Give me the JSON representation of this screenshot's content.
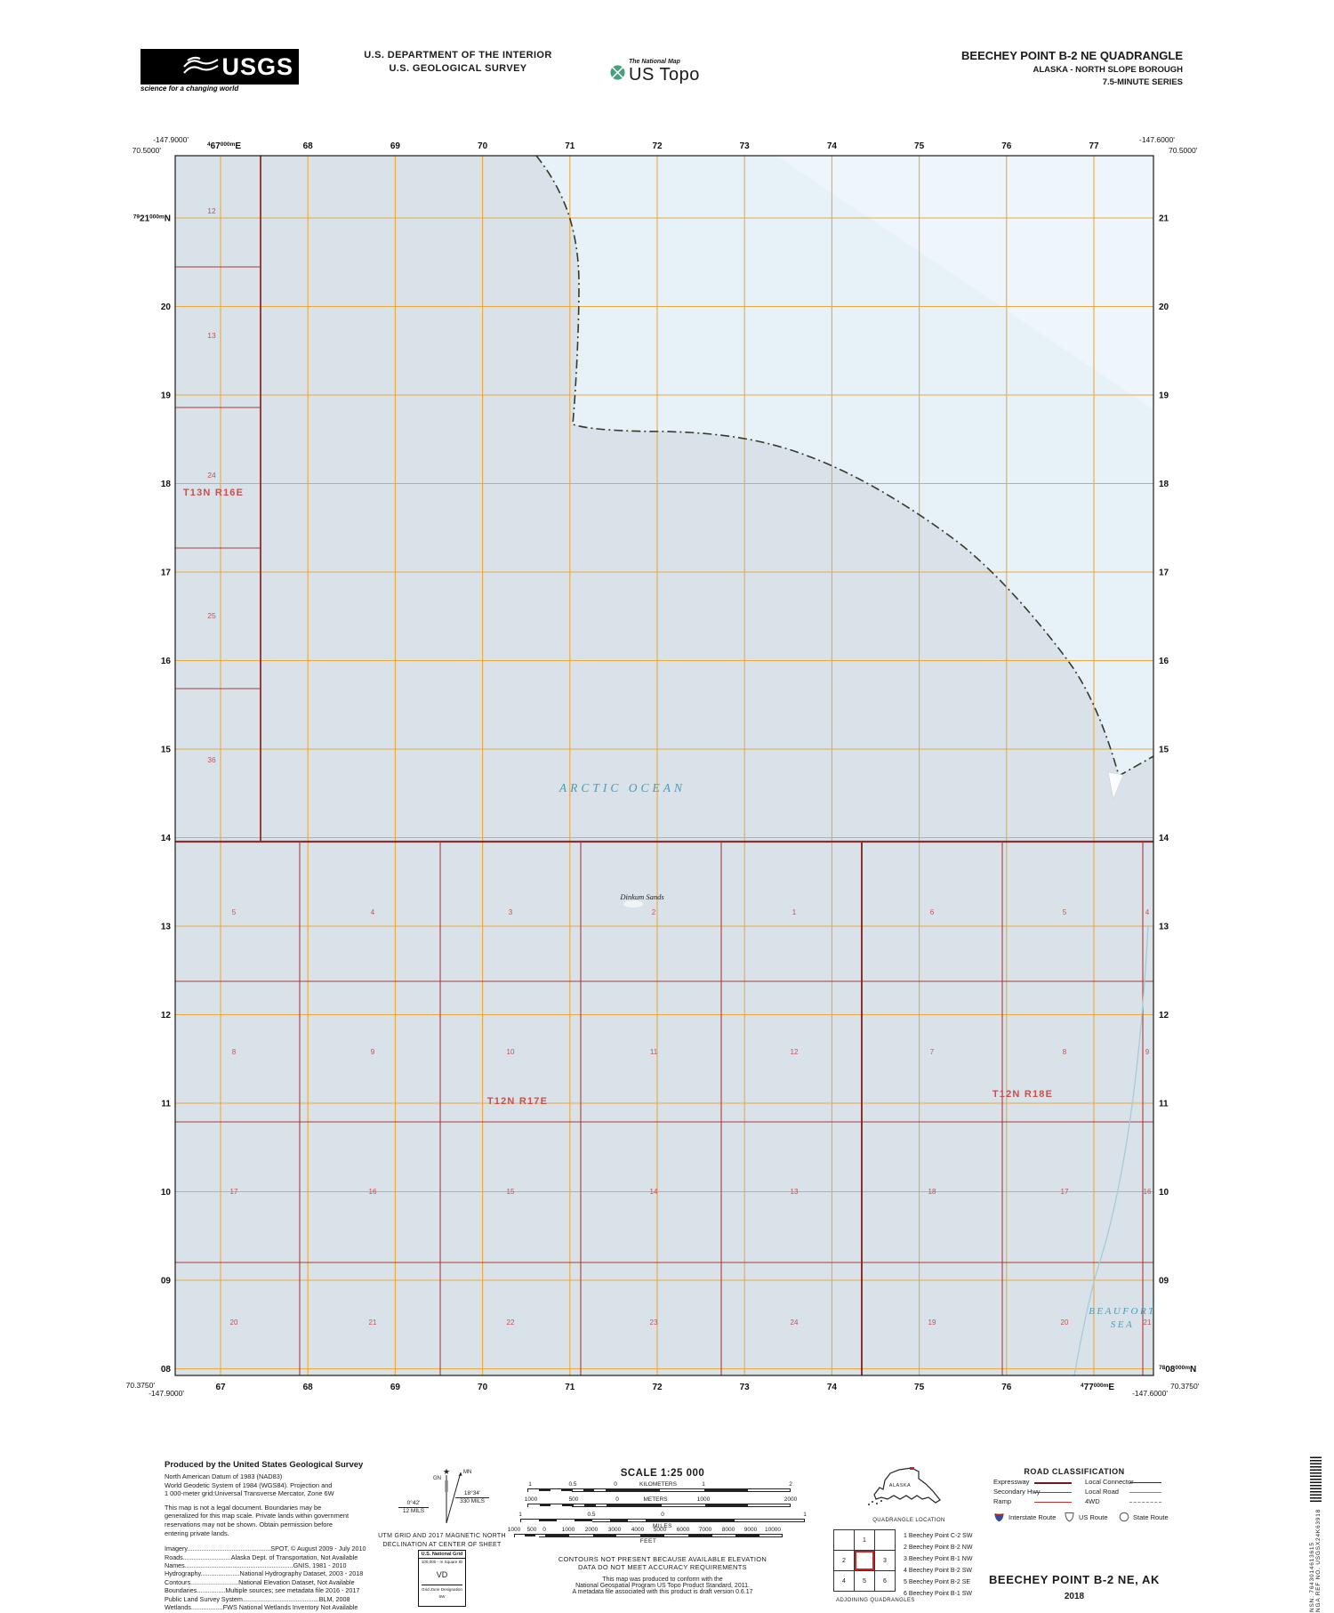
{
  "header": {
    "usgs_logo": {
      "text": "USGS",
      "tagline": "science for a changing world"
    },
    "dept_line1": "U.S. DEPARTMENT OF THE INTERIOR",
    "dept_line2": "U.S. GEOLOGICAL SURVEY",
    "ustopo": {
      "small": "The National Map",
      "big": "US Topo"
    },
    "quad_title": "BEECHEY POINT B-2 NE QUADRANGLE",
    "quad_subtitle": "ALASKA - NORTH SLOPE BOROUGH",
    "quad_series": "7.5-MINUTE SERIES"
  },
  "map": {
    "corners": {
      "tl_lon": "-147.9000'",
      "tl_lat": "70.5000'",
      "tr_lon": "-147.6000'",
      "tr_lat": "70.5000'",
      "bl_lat": "70.3750'",
      "bl_lon": "-147.9000'",
      "br_lon": "-147.6000'",
      "br_lat": "70.3750'"
    },
    "eastings": [
      "67",
      "68",
      "69",
      "70",
      "71",
      "72",
      "73",
      "74",
      "75",
      "76",
      "77"
    ],
    "northings": [
      "21",
      "20",
      "19",
      "18",
      "17",
      "16",
      "15",
      "14",
      "13",
      "12",
      "11",
      "10",
      "09",
      "08"
    ],
    "easting_prefix": "4",
    "northing_prefix_left": "79",
    "northing_prefix_right": "78",
    "meters_suffix": "000m",
    "east_dir": "E",
    "north_dir": "N",
    "left_sections": [
      "12",
      "13",
      "24",
      "25",
      "36"
    ],
    "left_township": "T13N R16E",
    "section_rows": [
      [
        "5",
        "4",
        "3",
        "2",
        "1",
        "6",
        "5",
        "4"
      ],
      [
        "8",
        "9",
        "10",
        "11",
        "12",
        "7",
        "8",
        "9"
      ],
      [
        "17",
        "16",
        "15",
        "14",
        "13",
        "18",
        "17",
        "16"
      ],
      [
        "20",
        "21",
        "22",
        "23",
        "24",
        "19",
        "20",
        "21"
      ]
    ],
    "townships": [
      "T12N R17E",
      "T12N R18E"
    ],
    "ocean_label": "ARCTIC OCEAN",
    "sea_label1": "BEAUFORT",
    "sea_label2": "SEA",
    "sands_label": "Dinkum Sands"
  },
  "colors": {
    "water_base": "#d9e2e8",
    "water_light": "#e7f1f8",
    "water_lighter": "#eef6fb",
    "grid_orange": "#eca83f",
    "section_red": "#a83c3c",
    "township_red": "#8d2f2f",
    "number_red": "#c94f4f",
    "ocean_label_blue": "#4a9cb8",
    "boundary_dark": "#39392a",
    "cable_blue": "#a6cbd8"
  },
  "footer_left": {
    "heading": "Produced by the United States Geological Survey",
    "datum_lines": [
      "North American Datum of 1983 (NAD83)",
      "World Geodetic System of 1984 (WGS84).  Projection and",
      "1 000-meter grid:Universal Transverse Mercator, Zone 6W"
    ],
    "legal_lines": [
      "This map is not a legal document. Boundaries may be",
      "generalized for this map scale. Private lands within government",
      "reservations may not be shown. Obtain permission before",
      "entering private lands."
    ],
    "attribution_lines": [
      "Imagery...............................................SPOT, © August 2009 - July 2010",
      "Roads...........................Alaska Dept. of Transportation, Not Available",
      "Names.............................................................GNIS, 1981 - 2010",
      "Hydrography......................National Hydrography Dataset, 2003 - 2018",
      "Contours...........................National Elevation Dataset, Not Available",
      "Boundaries................Multiple sources; see metadata file 2016 - 2017",
      "Public Land Survey System...........................................BLM, 2008",
      "Wetlands..................FWS National Wetlands Inventory Not Available"
    ]
  },
  "declination": {
    "star": "★",
    "gn": "GN",
    "mn": "MN",
    "left_deg": "0°42'",
    "left_mils": "12 MILS",
    "right_deg": "18°34'",
    "right_mils": "330 MILS",
    "caption1": "UTM GRID AND 2017 MAGNETIC NORTH",
    "caption2": "DECLINATION AT CENTER OF SHEET"
  },
  "usng": {
    "title": "U.S. National Grid",
    "sub": "100,000 - m Square ID",
    "square": "VD",
    "zone_label": "Grid Zone Designation",
    "zone": "6W"
  },
  "scale": {
    "title": "SCALE 1:25 000",
    "km_labels": [
      "1",
      "0.5",
      "0",
      "KILOMETERS",
      "1",
      "2"
    ],
    "m_labels": [
      "1000",
      "500",
      "0",
      "METERS",
      "1000",
      "2000"
    ],
    "mi_labels": [
      "1",
      "0.5",
      "0",
      "1"
    ],
    "mi_unit": "MILES",
    "ft_labels": [
      "1000",
      "500",
      "0",
      "1000",
      "2000",
      "3000",
      "4000",
      "5000",
      "6000",
      "7000",
      "8000",
      "9000",
      "10000"
    ],
    "ft_unit": "FEET",
    "note1": "CONTOURS NOT PRESENT BECAUSE AVAILABLE ELEVATION",
    "note2": "DATA DO NOT MEET ACCURACY REQUIREMENTS",
    "conform1": "This map was produced to conform with the",
    "conform2": "National Geospatial Program US Topo Product Standard, 2011.",
    "conform3": "A metadata file associated with this product is draft version 0.6.17"
  },
  "quadloc": {
    "state": "ALASKA",
    "caption": "QUADRANGLE LOCATION"
  },
  "adjoining": {
    "caption": "ADJOINING QUADRANGLES",
    "grid_numbers": [
      [
        "",
        "1",
        ""
      ],
      [
        "2",
        "",
        "3"
      ],
      [
        "4",
        "5",
        "6"
      ]
    ],
    "list": [
      "1 Beechey Point C-2 SW",
      "2 Beechey Point B-2 NW",
      "3 Beechey Point B-1 NW",
      "4 Beechey Point B-2 SW",
      "5 Beechey Point B-2 SE",
      "6 Beechey Point B-1 SW"
    ]
  },
  "road_classification": {
    "title": "ROAD CLASSIFICATION",
    "left": [
      {
        "label": "Expressway"
      },
      {
        "label": "Secondary Hwy"
      },
      {
        "label": "Ramp"
      }
    ],
    "right": [
      {
        "label": "Local Connector"
      },
      {
        "label": "Local Road"
      },
      {
        "label": "4WD"
      }
    ],
    "shields": [
      {
        "label": "Interstate Route"
      },
      {
        "label": "US Route"
      },
      {
        "label": "State Route"
      }
    ]
  },
  "title_block": {
    "name": "BEECHEY POINT B-2 NE,  AK",
    "year": "2018"
  },
  "edge": {
    "nsn": "NSN. 7643014613615",
    "nga": "NGA REF NO. USGSX24K63918"
  }
}
